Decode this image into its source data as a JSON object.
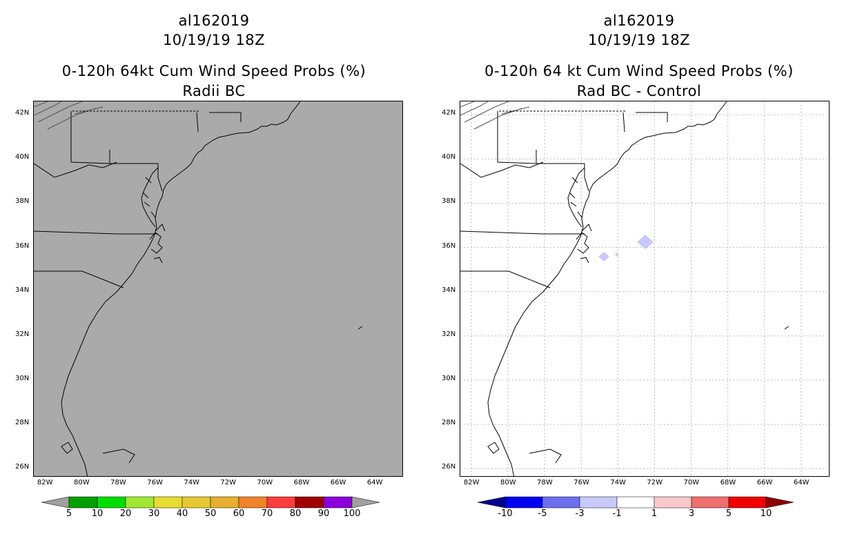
{
  "left_panel": {
    "storm_id": "al162019",
    "datetime": "10/19/19 18Z",
    "product": "0-120h 64kt Cum Wind Speed Probs (%)",
    "subtitle": "Radii BC",
    "fill_color": "#aaaaaa",
    "colorbar": {
      "labels": [
        "5",
        "10",
        "20",
        "30",
        "40",
        "50",
        "60",
        "70",
        "80",
        "90",
        "100"
      ],
      "colors": [
        "#a0a0a0",
        "#00a000",
        "#00dc00",
        "#a0e632",
        "#e6dc32",
        "#e6c832",
        "#e6af2d",
        "#f08228",
        "#fa3c3c",
        "#a00000",
        "#8c00dc",
        "#a0a0a0"
      ]
    }
  },
  "right_panel": {
    "storm_id": "al162019",
    "datetime": "10/19/19 18Z",
    "product": "0-120h 64 kt Cum Wind Speed Probs (%)",
    "subtitle": "Rad BC - Control",
    "fill_color": "#ffffff",
    "colorbar": {
      "labels": [
        "-10",
        "-5",
        "-3",
        "-1",
        "1",
        "3",
        "5",
        "10"
      ],
      "colors": [
        "#00008c",
        "#0000f0",
        "#6e6ef0",
        "#c8c8fa",
        "#ffffff",
        "#fac8c8",
        "#f06e6e",
        "#f00000",
        "#8c0000"
      ]
    }
  },
  "axes": {
    "lat_labels": [
      "42N",
      "40N",
      "38N",
      "36N",
      "34N",
      "32N",
      "30N",
      "28N",
      "26N"
    ],
    "lon_labels": [
      "82W",
      "80W",
      "78W",
      "76W",
      "74W",
      "72W",
      "70W",
      "68W",
      "66W",
      "64W"
    ]
  }
}
